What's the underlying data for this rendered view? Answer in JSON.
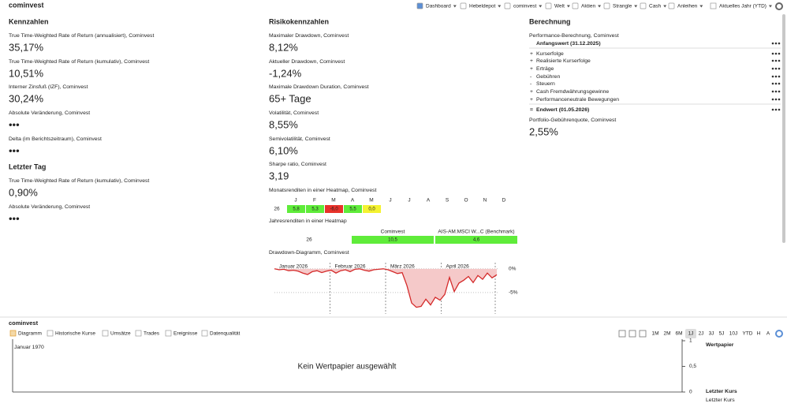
{
  "header": {
    "title": "cominvest",
    "toolbar": [
      "Dashboard",
      "Hebeldepot",
      "cominvest",
      "Welt",
      "Aktien",
      "Strangle",
      "Cash",
      "Anleihen"
    ],
    "period": "Aktuelles Jahr (YTD)"
  },
  "kennzahlen": {
    "title": "Kennzahlen",
    "color": "#2e8b00",
    "items": [
      {
        "label": "True Time-Weighted Rate of Return (annualisiert), Cominvest",
        "value": "35,17%"
      },
      {
        "label": "True Time-Weighted Rate of Return (kumulativ), Cominvest",
        "value": "10,51%"
      },
      {
        "label": "Interner Zinsfuß (IZF), Cominvest",
        "value": "30,24%"
      },
      {
        "label": "Absolute Veränderung, Cominvest",
        "value": "•••"
      },
      {
        "label": "Delta (im Berichtszeitraum), Cominvest",
        "value": "•••"
      }
    ]
  },
  "letzter_tag": {
    "title": "Letzter Tag",
    "color": "#2e8b00",
    "items": [
      {
        "label": "True Time-Weighted Rate of Return (kumulativ), Cominvest",
        "value": "0,90%"
      },
      {
        "label": "Absolute Veränderung, Cominvest",
        "value": "•••"
      }
    ]
  },
  "risiko": {
    "title": "Risikokennzahlen",
    "color": "#111111",
    "items": [
      {
        "label": "Maximaler Drawdown, Cominvest",
        "value": "8,12%"
      },
      {
        "label": "Aktueller Drawdown, Cominvest",
        "value": "-1,24%",
        "color": "#c0262c"
      },
      {
        "label": "Maximale Drawdown Duration, Cominvest",
        "value": "65+ Tage"
      },
      {
        "label": "Volatilität, Cominvest",
        "value": "8,55%"
      },
      {
        "label": "Semivolatilität, Cominvest",
        "value": "6,10%"
      },
      {
        "label": "Sharpe ratio, Cominvest",
        "value": "3,19"
      }
    ]
  },
  "heat_colors": {
    "positive": "#5fec3a",
    "negative": "#e8322a",
    "zero": "#f4f230"
  },
  "monthly_heatmap": {
    "label": "Monatsrenditen in einer Heatmap, Cominvest",
    "months": [
      "J",
      "F",
      "M",
      "A",
      "M",
      "J",
      "J",
      "A",
      "S",
      "O",
      "N",
      "D"
    ],
    "rows": [
      {
        "year": "26",
        "values": [
          5.8,
          5.3,
          -6.0,
          5.5,
          0.0
        ],
        "value_labels": [
          "5,8",
          "5,3",
          "-6,0",
          "5,5",
          "0,0"
        ]
      }
    ]
  },
  "yearly_heatmap": {
    "label": "Jahresrenditen in einer Heatmap",
    "columns": [
      "Cominvest",
      "AIS-AM.MSCI W...C (Benchmark)"
    ],
    "rows": [
      {
        "year": "26",
        "values": [
          10.5,
          4.6
        ],
        "value_labels": [
          "10,5",
          "4,6"
        ]
      }
    ]
  },
  "drawdown": {
    "label": "Drawdown-Diagramm, Cominvest",
    "type": "area",
    "color": "#d42a2a",
    "fill": "#f5c9c9",
    "x_labels": [
      "Januar 2026",
      "Februar 2026",
      "März 2026",
      "April 2026"
    ],
    "values": [
      0,
      -0.2,
      -0.1,
      -0.4,
      -0.3,
      -0.5,
      -0.9,
      -1.2,
      -0.6,
      -0.4,
      -0.8,
      -0.5,
      -0.3,
      -0.9,
      -0.4,
      -0.2,
      -0.6,
      -0.1,
      0,
      -0.3,
      -0.5,
      -0.2,
      -0.1,
      0,
      -0.2,
      -0.6,
      -1.0,
      -0.8,
      -3.5,
      -7.2,
      -8.1,
      -7.9,
      -6.4,
      -7.6,
      -6.0,
      -6.6,
      -5.4,
      -1.8,
      -4.8,
      -3.0,
      -2.4,
      -1.6,
      -2.9,
      -1.4,
      -2.2,
      -0.9,
      -1.9,
      -1.24
    ],
    "ylim": [
      -9.5,
      1.3
    ],
    "yticks": [
      {
        "value": 0,
        "label": "0%"
      },
      {
        "value": -5,
        "label": "-5%"
      }
    ]
  },
  "berechnung": {
    "title": "Berechnung",
    "subtitle": "Performance-Berechnung, Cominvest",
    "start": "Anfangswert (31.12.2025)",
    "rows": [
      {
        "sign": "+",
        "label": "Kurserfolge"
      },
      {
        "sign": "+",
        "label": "Realisierte Kurserfolge"
      },
      {
        "sign": "+",
        "label": "Erträge"
      },
      {
        "sign": "-",
        "label": "Gebühren"
      },
      {
        "sign": "-",
        "label": "Steuern"
      },
      {
        "sign": "+",
        "label": "Cash Fremdwährungsgewinne"
      },
      {
        "sign": "+",
        "label": "Performanceneutrale Bewegungen"
      }
    ],
    "end": {
      "sign": "=",
      "label": "Endwert (01.05.2026)"
    },
    "fee_label": "Portfolio-Gebührenquote, Cominvest",
    "fee_value": "2,55%"
  },
  "bottom": {
    "title": "cominvest",
    "tabs": [
      "Diagramm",
      "Historische Kurse",
      "Umsätze",
      "Trades",
      "Ereignisse",
      "Datenqualität"
    ],
    "periods": [
      "1M",
      "2M",
      "6M",
      "1J",
      "2J",
      "3J",
      "5J",
      "10J",
      "YTD",
      "H",
      "A"
    ],
    "selected_period": 3,
    "date": "Januar 1970",
    "placeholder": "Kein Wertpapier ausgewählt",
    "ylim": [
      0,
      1
    ],
    "yticks": [
      1,
      {
        "value": 0.5,
        "label": "0,5"
      },
      0
    ],
    "legend": [
      "Wertpapier",
      "Letzter Kurs",
      "Letzter Kurs"
    ]
  }
}
